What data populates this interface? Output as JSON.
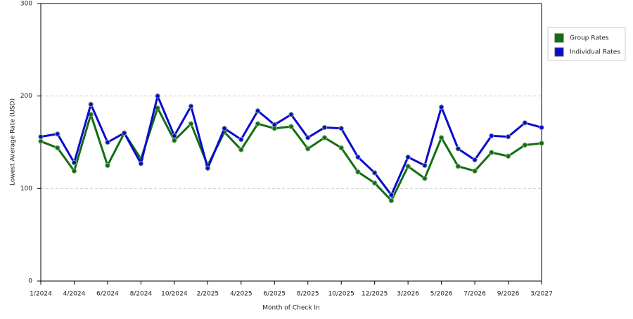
{
  "chart_data": {
    "type": "line",
    "x_label": "Month of Check In",
    "y_label": "Lowest Average Rate (USD)",
    "categories": [
      "1/2024",
      null,
      "4/2024",
      null,
      "6/2024",
      null,
      "8/2024",
      null,
      "10/2024",
      null,
      "2/2025",
      null,
      "4/2025",
      null,
      "6/2025",
      null,
      "8/2025",
      null,
      "10/2025",
      null,
      "12/2025",
      null,
      "3/2026",
      null,
      "5/2026",
      null,
      "7/2026",
      null,
      "9/2026",
      null,
      "3/2027"
    ],
    "series": [
      {
        "name": "Group Rates",
        "color": "#107010",
        "values": [
          151,
          144,
          119,
          180,
          125,
          160,
          132,
          187,
          152,
          170,
          125,
          161,
          142,
          170,
          165,
          167,
          143,
          155,
          144,
          118,
          106,
          87,
          124,
          111,
          155,
          124,
          119,
          139,
          135,
          147,
          149
        ]
      },
      {
        "name": "Individual Rates",
        "color": "#0a0ad0",
        "values": [
          156,
          159,
          128,
          191,
          150,
          160,
          127,
          200,
          157,
          189,
          122,
          165,
          153,
          184,
          169,
          180,
          155,
          166,
          165,
          134,
          117,
          93,
          134,
          125,
          188,
          143,
          131,
          157,
          156,
          171,
          166
        ]
      }
    ],
    "ylim": [
      0,
      300
    ],
    "yticks": [
      0,
      100,
      200,
      300
    ],
    "grid": true,
    "legend": "right"
  }
}
